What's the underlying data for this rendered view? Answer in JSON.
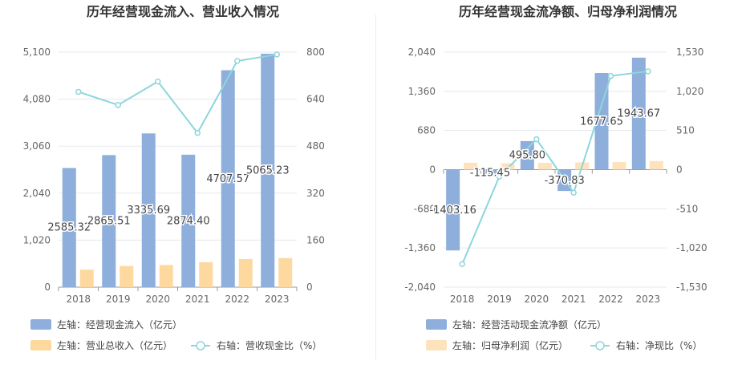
{
  "chart_data": [
    {
      "type": "bar",
      "title": "历年经营现金流入、营业收入情况",
      "categories": [
        "2018",
        "2019",
        "2020",
        "2021",
        "2022",
        "2023"
      ],
      "left_axis": {
        "ticks": [
          "0",
          "1,020",
          "2,040",
          "3,060",
          "4,080",
          "5,100"
        ],
        "range": [
          0,
          5100
        ]
      },
      "right_axis": {
        "ticks": [
          "0",
          "160",
          "320",
          "480",
          "640",
          "800"
        ],
        "range": [
          0,
          800
        ]
      },
      "series": [
        {
          "name": "左轴：经营现金流入（亿元）",
          "axis": "left",
          "kind": "bar",
          "color": "#8eaedc",
          "values": [
            2585.32,
            2865.51,
            3335.69,
            2874.4,
            4707.57,
            5065.23
          ],
          "labels": [
            "2585.32",
            "2865.51",
            "3335.69",
            "2874.40",
            "4707.57",
            "5065.23"
          ]
        },
        {
          "name": "左轴：营业总收入（亿元）",
          "axis": "left",
          "kind": "bar",
          "color": "#fdd9a0",
          "values": [
            380,
            460,
            480,
            540,
            610,
            630
          ]
        },
        {
          "name": "右轴：营收现金比（%）",
          "axis": "right",
          "kind": "line",
          "color": "#8dd6db",
          "values": [
            665,
            620,
            700,
            525,
            770,
            792
          ]
        }
      ],
      "legend_position": "bottom-left",
      "grid": true
    },
    {
      "type": "bar",
      "title": "历年经营现金流净额、归母净利润情况",
      "categories": [
        "2018",
        "2019",
        "2020",
        "2021",
        "2022",
        "2023"
      ],
      "left_axis": {
        "ticks": [
          "-2,040",
          "-1,360",
          "-680",
          "0",
          "680",
          "1,360",
          "2,040"
        ],
        "range": [
          -2040,
          2040
        ]
      },
      "right_axis": {
        "ticks": [
          "-1,530",
          "-1,020",
          "-510",
          "0",
          "510",
          "1,020",
          "1,530"
        ],
        "range": [
          -1530,
          1530
        ]
      },
      "series": [
        {
          "name": "左轴：经营活动现金流净额（亿元）",
          "axis": "left",
          "kind": "bar",
          "color": "#8eaedc",
          "values": [
            -1403.16,
            -115.45,
            495.8,
            -370.83,
            1677.65,
            1943.67
          ],
          "labels": [
            "-1403.16",
            "-115.45",
            "495.80",
            "-370.83",
            "1677.65",
            "1943.67"
          ]
        },
        {
          "name": "左轴：归母净利润（亿元）",
          "axis": "left",
          "kind": "bar",
          "color": "#fde3bd",
          "values": [
            120,
            110,
            118,
            125,
            132,
            150
          ]
        },
        {
          "name": "右轴：净现比（%）",
          "axis": "right",
          "kind": "line",
          "color": "#8dd6db",
          "values": [
            -1230,
            -90,
            395,
            -300,
            1220,
            1280
          ]
        }
      ],
      "legend_position": "bottom-left",
      "grid": true
    }
  ]
}
